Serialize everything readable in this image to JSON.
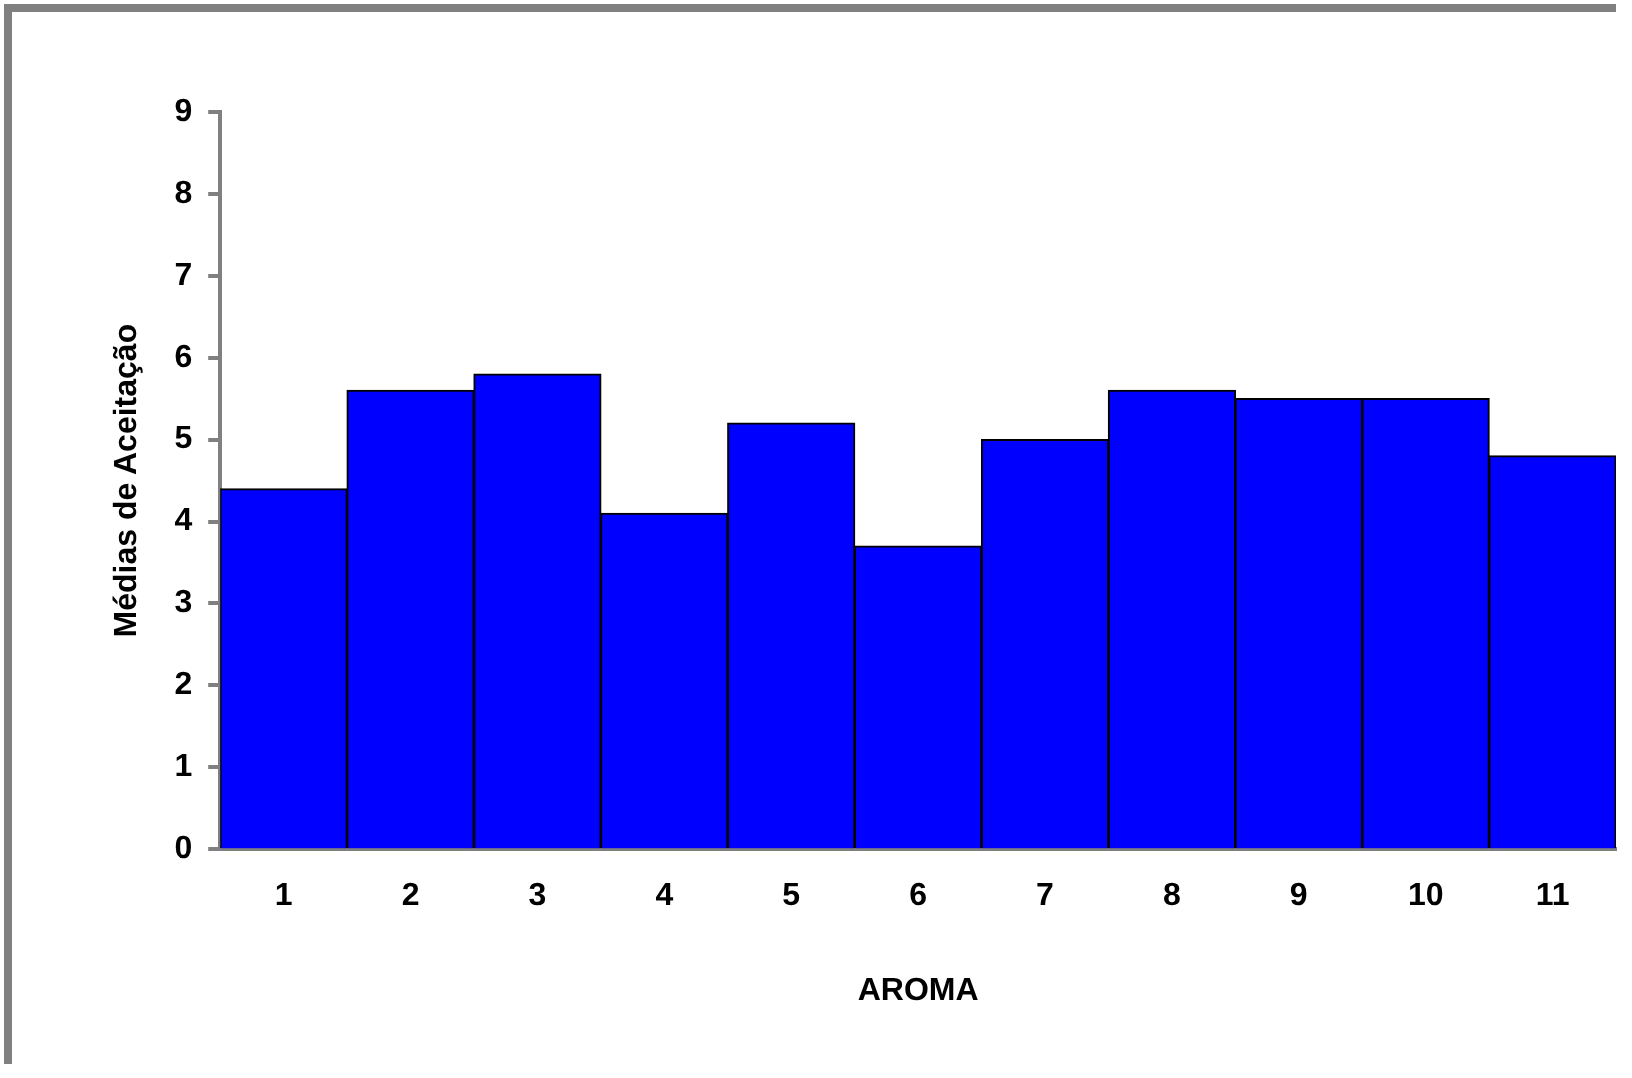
{
  "chart_data": {
    "type": "bar",
    "xlabel": "AROMA",
    "ylabel": "Médias de Aceitação",
    "categories": [
      "1",
      "2",
      "3",
      "4",
      "5",
      "6",
      "7",
      "8",
      "9",
      "10",
      "11"
    ],
    "values": [
      4.4,
      5.6,
      5.8,
      4.1,
      5.2,
      3.7,
      5.0,
      5.6,
      5.5,
      5.5,
      4.8
    ],
    "color": "#0000ff",
    "ylim": [
      0,
      9
    ],
    "yticks": [
      0,
      1,
      2,
      3,
      4,
      5,
      6,
      7,
      8,
      9
    ],
    "grid": false,
    "legend": false
  }
}
